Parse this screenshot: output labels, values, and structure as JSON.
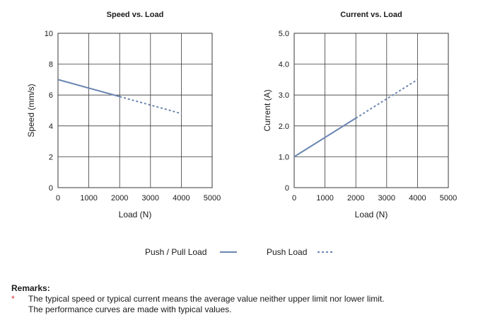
{
  "colors": {
    "series": "#6b86b1"
  },
  "chart_data": [
    {
      "type": "line",
      "title": "Speed vs. Load",
      "xlabel": "Load (N)",
      "ylabel": "Speed (mm/s)",
      "xlim": [
        0,
        5000
      ],
      "ylim": [
        0,
        10
      ],
      "x_ticks": [
        "0",
        "1000",
        "2000",
        "3000",
        "4000",
        "5000"
      ],
      "y_ticks": [
        "0",
        "2",
        "4",
        "6",
        "8",
        "10"
      ],
      "grid": true,
      "series": [
        {
          "name": "Push / Pull Load",
          "style": "solid",
          "x": [
            0,
            2000
          ],
          "y": [
            7.0,
            5.9
          ]
        },
        {
          "name": "Push Load",
          "style": "dashed",
          "x": [
            2000,
            4000
          ],
          "y": [
            5.9,
            4.8
          ]
        }
      ]
    },
    {
      "type": "line",
      "title": "Current  vs. Load",
      "xlabel": "Load (N)",
      "ylabel": "Current (A)",
      "xlim": [
        0,
        5000
      ],
      "ylim": [
        0,
        5
      ],
      "x_ticks": [
        "0",
        "1000",
        "2000",
        "3000",
        "4000",
        "5000"
      ],
      "y_ticks": [
        "0",
        "1.0",
        "2.0",
        "3.0",
        "4.0",
        "5.0"
      ],
      "grid": true,
      "series": [
        {
          "name": "Push / Pull Load",
          "style": "solid",
          "x": [
            0,
            2000
          ],
          "y": [
            1.0,
            2.25
          ]
        },
        {
          "name": "Push Load",
          "style": "dashed",
          "x": [
            2000,
            4000
          ],
          "y": [
            2.25,
            3.5
          ]
        }
      ]
    }
  ],
  "legend": [
    {
      "label": "Push / Pull Load",
      "style": "solid"
    },
    {
      "label": "Push Load",
      "style": "dashed"
    }
  ],
  "remarks": {
    "title": "Remarks:",
    "marker": "*",
    "line1": "The typical speed or typical current means the average value neither upper limit nor lower limit.",
    "line2": "The performance curves are made with typical values."
  }
}
